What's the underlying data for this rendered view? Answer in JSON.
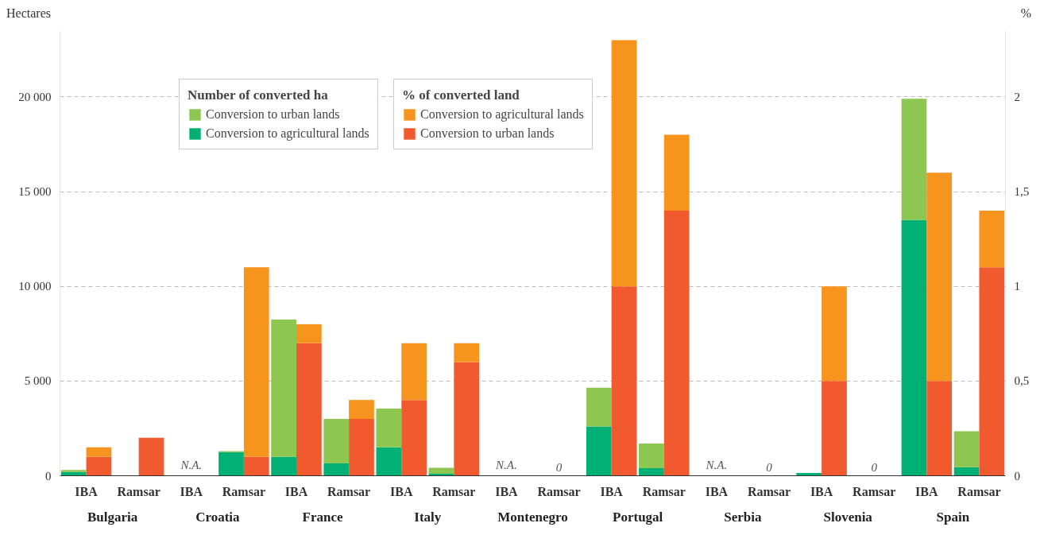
{
  "chart_data": {
    "type": "bar",
    "stacked": true,
    "ylabel": "Hectares",
    "y2label": "%",
    "legend_title": [
      "Number of converted ha",
      "% of converted land"
    ],
    "categories": [
      "IBA",
      "Ramsar",
      "IBA",
      "Ramsar",
      "IBA",
      "Ramsar",
      "IBA",
      "Ramsar",
      "IBA",
      "Ramsar",
      "IBA",
      "Ramsar",
      "IBA",
      "Ramsar",
      "IBA",
      "Ramsar",
      "IBA",
      "Ramsar"
    ],
    "series": [
      {
        "name": "Conversion to agricultural lands",
        "color": "#00b074",
        "axis": "y",
        "values": [
          200,
          0,
          null,
          1250,
          1000,
          650,
          1500,
          100,
          null,
          0,
          2600,
          400,
          null,
          0,
          150,
          0,
          13500,
          450
        ]
      },
      {
        "name": "Conversion to urban lands",
        "color": "#8dc651",
        "axis": "y",
        "values": [
          100,
          0,
          null,
          50,
          7250,
          2350,
          2050,
          320,
          null,
          0,
          2050,
          1300,
          null,
          0,
          0,
          0,
          6400,
          1900
        ]
      },
      {
        "name": "Conversion to urban lands",
        "color": "#f05a2e",
        "axis": "y2",
        "values": [
          0.1,
          0.2,
          null,
          0.1,
          0.7,
          0.3,
          0.4,
          0.6,
          null,
          0,
          1.0,
          1.4,
          null,
          0,
          0.5,
          0,
          0.5,
          1.1
        ]
      },
      {
        "name": "Conversion to agricultural lands",
        "color": "#f7941e",
        "axis": "y2",
        "values": [
          0.05,
          0,
          null,
          1.0,
          0.1,
          0.1,
          0.3,
          0.1,
          null,
          0,
          1.3,
          0.4,
          null,
          0,
          0.5,
          0,
          1.1,
          0.3
        ]
      }
    ],
    "annotations": [
      "N.A.",
      "N.A.",
      "0",
      "N.A.",
      "0",
      "0",
      "Bulgaria",
      "Croatia",
      "France",
      "Italy",
      "Montenegro",
      "Portugal",
      "Serbia",
      "Slovenia",
      "Spain"
    ],
    "ylim": [
      0,
      23500
    ],
    "yticks": [
      0,
      {
        "value": 5000,
        "label": "5 000"
      },
      {
        "value": 10000,
        "label": "10 000"
      },
      {
        "value": 15000,
        "label": "15 000"
      },
      {
        "value": 20000,
        "label": "20 000"
      }
    ],
    "y2lim": [
      0,
      2.35
    ],
    "y2ticks": [
      0,
      {
        "value": 0.5,
        "label": "0,5"
      },
      1,
      {
        "value": 1.5,
        "label": "1,5"
      },
      2
    ],
    "grid": "y",
    "legend": "top left"
  }
}
